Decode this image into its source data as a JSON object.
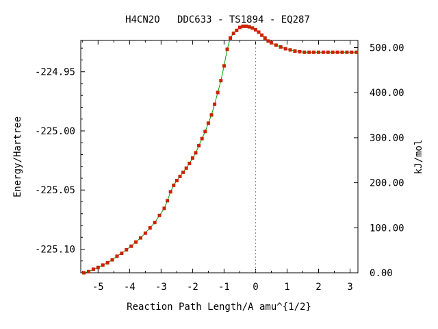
{
  "chart_data": {
    "type": "line",
    "title": "H4CN2O   DDC633 - TS1894 - EQ287",
    "xlabel": "Reaction Path Length/A amu^{1/2}",
    "ylabel": "Energy/Hartree",
    "y2label": "kJ/mol",
    "xlim": [
      -5.55,
      3.25
    ],
    "ylim": [
      -225.12,
      -224.9235
    ],
    "y2lim": [
      0.0,
      516.0
    ],
    "x_ticks": [
      -5,
      -4,
      -3,
      -2,
      -1,
      0,
      1,
      2,
      3
    ],
    "x_tick_labels": [
      "-5",
      "-4",
      "-3",
      "-2",
      "-1",
      "0",
      "1",
      "2",
      "3"
    ],
    "y_ticks": [
      -224.95,
      -225.0,
      -225.05,
      -225.1
    ],
    "y_tick_labels": [
      "-224.95",
      "-225.00",
      "-225.05",
      "-225.10"
    ],
    "y2_ticks": [
      0,
      100,
      200,
      300,
      400,
      500
    ],
    "y2_tick_labels": [
      "0.00",
      "100.00",
      "200.00",
      "300.00",
      "400.00",
      "500.00"
    ],
    "ts_x": 0.0,
    "line_color": "#00a000",
    "marker_color": "#cc2200",
    "ts_line_color": "#888888",
    "grid": false,
    "series": [
      {
        "x": [
          -5.45,
          -5.3,
          -5.15,
          -5.0,
          -4.85,
          -4.7,
          -4.55,
          -4.4,
          -4.25,
          -4.1,
          -3.95,
          -3.8,
          -3.65,
          -3.5,
          -3.35,
          -3.2,
          -3.05,
          -2.9,
          -2.8,
          -2.7,
          -2.6,
          -2.5,
          -2.4,
          -2.3,
          -2.2,
          -2.1,
          -2.0,
          -1.9,
          -1.8,
          -1.7,
          -1.6,
          -1.5,
          -1.4,
          -1.3,
          -1.2,
          -1.1,
          -1.0,
          -0.9,
          -0.8,
          -0.7,
          -0.6,
          -0.5,
          -0.4,
          -0.3,
          -0.2,
          -0.1,
          0.0,
          0.1,
          0.2,
          0.3,
          0.4,
          0.5,
          0.65,
          0.8,
          0.95,
          1.1,
          1.25,
          1.4,
          1.55,
          1.7,
          1.85,
          2.0,
          2.15,
          2.3,
          2.45,
          2.6,
          2.75,
          2.9,
          3.05,
          3.2
        ],
        "y": [
          -225.12,
          -225.119,
          -225.117,
          -225.1155,
          -225.1135,
          -225.1115,
          -225.109,
          -225.106,
          -225.1035,
          -225.1005,
          -225.0975,
          -225.094,
          -225.0905,
          -225.0865,
          -225.082,
          -225.0775,
          -225.0715,
          -225.0655,
          -225.059,
          -225.0515,
          -225.046,
          -225.042,
          -225.0385,
          -225.035,
          -225.0315,
          -225.0275,
          -225.023,
          -225.0185,
          -225.0125,
          -225.0065,
          -225.0005,
          -224.9935,
          -224.9865,
          -224.9775,
          -224.9675,
          -224.9575,
          -224.945,
          -224.931,
          -224.9215,
          -224.9175,
          -224.915,
          -224.9125,
          -224.9115,
          -224.9115,
          -224.912,
          -224.913,
          -224.9145,
          -224.9165,
          -224.919,
          -224.9215,
          -224.924,
          -224.9255,
          -224.9275,
          -224.929,
          -224.9305,
          -224.9315,
          -224.9325,
          -224.933,
          -224.9335,
          -224.9335,
          -224.9335,
          -224.9335,
          -224.9335,
          -224.9335,
          -224.9335,
          -224.9335,
          -224.9335,
          -224.9335,
          -224.9335,
          -224.9335
        ]
      }
    ]
  }
}
